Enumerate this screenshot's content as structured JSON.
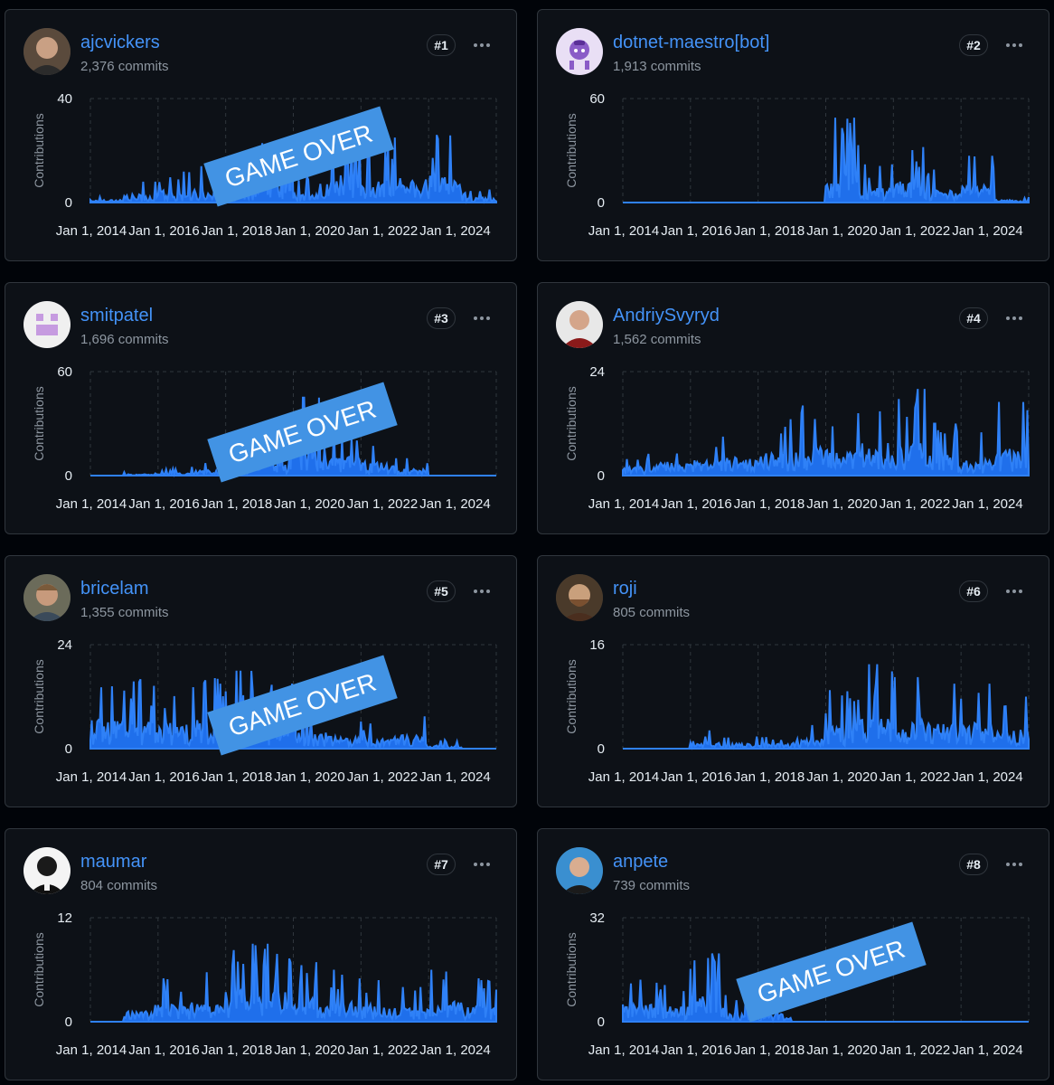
{
  "banner_text": "GAME OVER",
  "x_ticks": [
    "Jan 1, 2014",
    "Jan 1, 2016",
    "Jan 1, 2018",
    "Jan 1, 2020",
    "Jan 1, 2022",
    "Jan 1, 2024"
  ],
  "y_label": "Contributions",
  "series_color": "#1f6feb",
  "contributors": [
    {
      "username": "ajcvickers",
      "commits": "2,376 commits",
      "rank": "#1",
      "avatar_icon": "person-photo-icon",
      "game_over": true,
      "chart_data": {
        "type": "area",
        "ylabel": "Contributions",
        "ylim": [
          0,
          40
        ],
        "y_ticks": [
          "40",
          "0"
        ],
        "xlim": [
          "2013-01",
          "2024-12"
        ],
        "x": [
          "2013",
          "2014",
          "2015",
          "2016",
          "2017",
          "2018",
          "2019",
          "2020",
          "2021",
          "2022",
          "2023",
          "2024"
        ],
        "values": [
          3,
          8,
          12,
          14,
          17,
          24,
          10,
          27,
          24,
          25,
          26,
          5
        ]
      }
    },
    {
      "username": "dotnet-maestro[bot]",
      "commits": "1,913 commits",
      "rank": "#2",
      "avatar_icon": "bot-icon",
      "game_over": false,
      "chart_data": {
        "type": "area",
        "ylabel": "Contributions",
        "ylim": [
          0,
          60
        ],
        "y_ticks": [
          "60",
          "0"
        ],
        "xlim": [
          "2013-01",
          "2024-12"
        ],
        "x": [
          "2013",
          "2014",
          "2015",
          "2016",
          "2017",
          "2018",
          "2019",
          "2020",
          "2021",
          "2022",
          "2023",
          "2024"
        ],
        "values": [
          0,
          0,
          0,
          0,
          0,
          0,
          49,
          22,
          32,
          19,
          27,
          4
        ]
      }
    },
    {
      "username": "smitpatel",
      "commits": "1,696 commits",
      "rank": "#3",
      "avatar_icon": "identicon-icon",
      "game_over": true,
      "chart_data": {
        "type": "area",
        "ylabel": "Contributions",
        "ylim": [
          0,
          60
        ],
        "y_ticks": [
          "60",
          "0"
        ],
        "xlim": [
          "2013-01",
          "2024-12"
        ],
        "x": [
          "2013",
          "2014",
          "2015",
          "2016",
          "2017",
          "2018",
          "2019",
          "2020",
          "2021",
          "2022",
          "2023",
          "2024"
        ],
        "values": [
          0,
          2,
          4,
          8,
          22,
          26,
          45,
          28,
          20,
          10,
          0,
          0
        ]
      }
    },
    {
      "username": "AndriySvyryd",
      "commits": "1,562 commits",
      "rank": "#4",
      "avatar_icon": "person-photo-icon",
      "game_over": false,
      "chart_data": {
        "type": "area",
        "ylabel": "Contributions",
        "ylim": [
          0,
          24
        ],
        "y_ticks": [
          "24",
          "0"
        ],
        "xlim": [
          "2013-01",
          "2024-12"
        ],
        "x": [
          "2013",
          "2014",
          "2015",
          "2016",
          "2017",
          "2018",
          "2019",
          "2020",
          "2021",
          "2022",
          "2023",
          "2024"
        ],
        "values": [
          5,
          8,
          9,
          11,
          13,
          17,
          15,
          19,
          20,
          12,
          10,
          17
        ]
      }
    },
    {
      "username": "bricelam",
      "commits": "1,355 commits",
      "rank": "#5",
      "avatar_icon": "person-photo-icon",
      "game_over": true,
      "chart_data": {
        "type": "area",
        "ylabel": "Contributions",
        "ylim": [
          0,
          24
        ],
        "y_ticks": [
          "24",
          "0"
        ],
        "xlim": [
          "2013-01",
          "2024-12"
        ],
        "x": [
          "2013",
          "2014",
          "2015",
          "2016",
          "2017",
          "2018",
          "2019",
          "2020",
          "2021",
          "2022",
          "2023",
          "2024"
        ],
        "values": [
          17,
          16,
          15,
          17,
          18,
          15,
          10,
          7,
          7,
          8,
          2,
          0
        ]
      }
    },
    {
      "username": "roji",
      "commits": "805 commits",
      "rank": "#6",
      "avatar_icon": "person-photo-icon",
      "game_over": false,
      "chart_data": {
        "type": "area",
        "ylabel": "Contributions",
        "ylim": [
          0,
          16
        ],
        "y_ticks": [
          "16",
          "0"
        ],
        "xlim": [
          "2013-01",
          "2024-12"
        ],
        "x": [
          "2013",
          "2014",
          "2015",
          "2016",
          "2017",
          "2018",
          "2019",
          "2020",
          "2021",
          "2022",
          "2023",
          "2024"
        ],
        "values": [
          0,
          0,
          3,
          2,
          2,
          4,
          9,
          13,
          11,
          10,
          10,
          8
        ]
      }
    },
    {
      "username": "maumar",
      "commits": "804 commits",
      "rank": "#7",
      "avatar_icon": "person-photo-icon",
      "game_over": false,
      "chart_data": {
        "type": "area",
        "ylabel": "Contributions",
        "ylim": [
          0,
          12
        ],
        "y_ticks": [
          "12",
          "0"
        ],
        "xlim": [
          "2013-01",
          "2024-12"
        ],
        "x": [
          "2013",
          "2014",
          "2015",
          "2016",
          "2017",
          "2018",
          "2019",
          "2020",
          "2021",
          "2022",
          "2023",
          "2024"
        ],
        "values": [
          0,
          3,
          5,
          6,
          9,
          9,
          7,
          6,
          5,
          4,
          6,
          5
        ]
      }
    },
    {
      "username": "anpete",
      "commits": "739 commits",
      "rank": "#8",
      "avatar_icon": "person-photo-icon",
      "game_over": true,
      "chart_data": {
        "type": "area",
        "ylabel": "Contributions",
        "ylim": [
          0,
          32
        ],
        "y_ticks": [
          "32",
          "0"
        ],
        "xlim": [
          "2013-01",
          "2024-12"
        ],
        "x": [
          "2013",
          "2014",
          "2015",
          "2016",
          "2017",
          "2018",
          "2019",
          "2020",
          "2021",
          "2022",
          "2023",
          "2024"
        ],
        "values": [
          14,
          12,
          21,
          9,
          6,
          0,
          0,
          0,
          0,
          0,
          0,
          0
        ]
      }
    }
  ]
}
